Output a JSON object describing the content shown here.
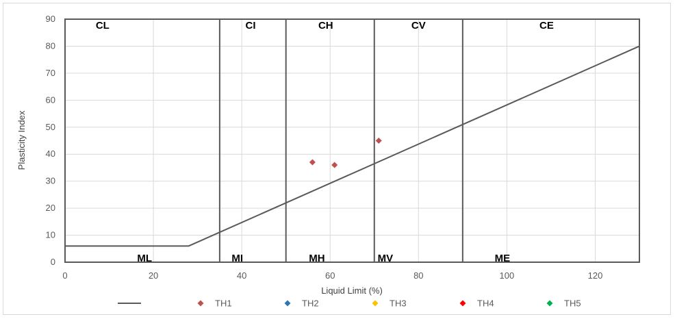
{
  "chart_data": {
    "type": "scatter",
    "xlabel": "Liquid Limit (%)",
    "ylabel": "Plasticity Index",
    "xlim": [
      0,
      130
    ],
    "ylim": [
      0,
      90
    ],
    "x_ticks": [
      0,
      20,
      40,
      60,
      80,
      100,
      120
    ],
    "y_ticks": [
      0,
      10,
      20,
      30,
      40,
      50,
      60,
      70,
      80,
      90
    ],
    "grid": true,
    "legend_position": "bottom",
    "a_line": {
      "name": "",
      "color": "#595959",
      "points": [
        [
          0,
          6
        ],
        [
          28,
          6
        ],
        [
          130,
          80
        ]
      ]
    },
    "zone_boundaries": [
      35,
      50,
      70,
      90,
      130
    ],
    "zones_upper": [
      {
        "label": "CL",
        "x": 8.5
      },
      {
        "label": "CI",
        "x": 42
      },
      {
        "label": "CH",
        "x": 59
      },
      {
        "label": "CV",
        "x": 80
      },
      {
        "label": "CE",
        "x": 109
      }
    ],
    "zones_lower": [
      {
        "label": "ML",
        "x": 18
      },
      {
        "label": "MI",
        "x": 39
      },
      {
        "label": "MH",
        "x": 57
      },
      {
        "label": "MV",
        "x": 72.5
      },
      {
        "label": "ME",
        "x": 99
      }
    ],
    "series": [
      {
        "name": "TH1",
        "color": "#c0504d",
        "points": [
          [
            56,
            37
          ],
          [
            61,
            36
          ],
          [
            71,
            45
          ]
        ]
      },
      {
        "name": "TH2",
        "color": "#2e75b6",
        "points": []
      },
      {
        "name": "TH3",
        "color": "#ffc000",
        "points": []
      },
      {
        "name": "TH4",
        "color": "#ff0000",
        "points": []
      },
      {
        "name": "TH5",
        "color": "#00b050",
        "points": []
      }
    ]
  }
}
